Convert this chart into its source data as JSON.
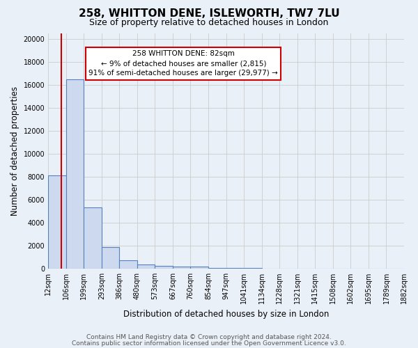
{
  "title": "258, WHITTON DENE, ISLEWORTH, TW7 7LU",
  "subtitle": "Size of property relative to detached houses in London",
  "xlabel": "Distribution of detached houses by size in London",
  "ylabel": "Number of detached properties",
  "bin_labels": [
    "12sqm",
    "106sqm",
    "199sqm",
    "293sqm",
    "386sqm",
    "480sqm",
    "573sqm",
    "667sqm",
    "760sqm",
    "854sqm",
    "947sqm",
    "1041sqm",
    "1134sqm",
    "1228sqm",
    "1321sqm",
    "1415sqm",
    "1508sqm",
    "1602sqm",
    "1695sqm",
    "1789sqm",
    "1882sqm"
  ],
  "bar_heights": [
    8100,
    16500,
    5300,
    1850,
    700,
    350,
    250,
    200,
    150,
    50,
    30,
    20,
    15,
    10,
    8,
    5,
    5,
    5,
    5,
    5
  ],
  "bar_color": "#ccd9ee",
  "bar_edge_color": "#5580bb",
  "background_color": "#eaf0f8",
  "annotation_line1": "258 WHITTON DENE: 82sqm",
  "annotation_line2": "← 9% of detached houses are smaller (2,815)",
  "annotation_line3": "91% of semi-detached houses are larger (29,977) →",
  "annotation_box_color": "#ffffff",
  "annotation_box_edge": "#cc0000",
  "red_line_color": "#cc0000",
  "ylim": [
    0,
    20500
  ],
  "yticks": [
    0,
    2000,
    4000,
    6000,
    8000,
    10000,
    12000,
    14000,
    16000,
    18000,
    20000
  ],
  "title_fontsize": 11,
  "subtitle_fontsize": 9,
  "axis_label_fontsize": 8.5,
  "tick_fontsize": 7,
  "footer_fontsize": 6.5,
  "footer_line1": "Contains HM Land Registry data © Crown copyright and database right 2024.",
  "footer_line2": "Contains public sector information licensed under the Open Government Licence v3.0."
}
